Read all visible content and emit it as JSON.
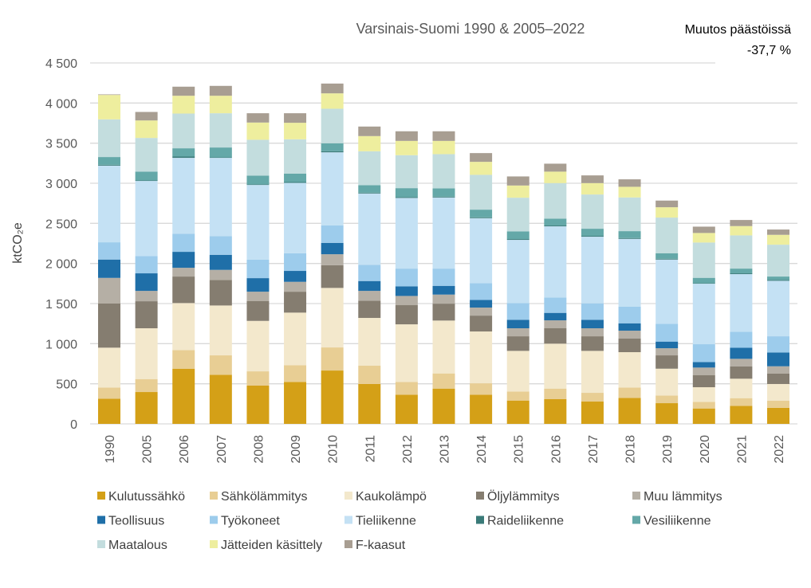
{
  "chart_data": {
    "type": "bar",
    "stacked": true,
    "title": "Varsinais-Suomi 1990 & 2005–2022",
    "annotation": {
      "label": "Muutos päästöissä",
      "value": "-37,7 %"
    },
    "xlabel": "",
    "ylabel": "ktCO₂e",
    "ylim": [
      0,
      4500
    ],
    "yticks": [
      0,
      500,
      1000,
      1500,
      2000,
      2500,
      3000,
      3500,
      4000,
      4500
    ],
    "ytick_labels": [
      "0",
      "500",
      "1 000",
      "1 500",
      "2 000",
      "2 500",
      "3 000",
      "3 500",
      "4 000",
      "4 500"
    ],
    "grid": true,
    "legend_position": "bottom",
    "categories": [
      "1990",
      "2005",
      "2006",
      "2007",
      "2008",
      "2009",
      "2010",
      "2011",
      "2012",
      "2013",
      "2014",
      "2015",
      "2016",
      "2017",
      "2018",
      "2019",
      "2020",
      "2021",
      "2022"
    ],
    "series": [
      {
        "name": "Kulutussähkö",
        "color": "#D4A017",
        "values": [
          314,
          397,
          688,
          612,
          477,
          523,
          665,
          497,
          364,
          440,
          364,
          291,
          308,
          278,
          324,
          258,
          192,
          225,
          199
        ]
      },
      {
        "name": "Sähkölämmitys",
        "color": "#E8CE94",
        "values": [
          139,
          162,
          232,
          242,
          178,
          208,
          288,
          228,
          159,
          189,
          142,
          113,
          132,
          109,
          129,
          96,
          83,
          96,
          89
        ]
      },
      {
        "name": "Kaukolämpö",
        "color": "#F3E8CC",
        "values": [
          497,
          633,
          586,
          622,
          629,
          656,
          742,
          596,
          718,
          659,
          646,
          506,
          560,
          523,
          441,
          334,
          182,
          242,
          209
        ]
      },
      {
        "name": "Öljylämmitys",
        "color": "#857D70",
        "values": [
          550,
          337,
          331,
          318,
          249,
          261,
          284,
          215,
          239,
          211,
          198,
          182,
          192,
          182,
          172,
          166,
          149,
          155,
          129
        ]
      },
      {
        "name": "Muu lämmitys",
        "color": "#B5AFA5",
        "values": [
          320,
          129,
          109,
          126,
          115,
          123,
          136,
          122,
          115,
          113,
          100,
          100,
          99,
          100,
          96,
          89,
          96,
          93,
          92
        ]
      },
      {
        "name": "Teollisuus",
        "color": "#1F6FA8",
        "values": [
          229,
          219,
          199,
          188,
          169,
          136,
          142,
          123,
          120,
          109,
          96,
          106,
          93,
          106,
          92,
          83,
          69,
          139,
          172
        ]
      },
      {
        "name": "Työkoneet",
        "color": "#9DCCEC",
        "values": [
          215,
          215,
          225,
          232,
          232,
          221,
          219,
          202,
          221,
          215,
          208,
          208,
          192,
          205,
          209,
          222,
          222,
          199,
          202
        ]
      },
      {
        "name": "Tieliikenne",
        "color": "#C4E1F4",
        "values": [
          956,
          937,
          947,
          977,
          930,
          877,
          910,
          890,
          881,
          887,
          811,
          788,
          887,
          831,
          844,
          801,
          755,
          718,
          692
        ]
      },
      {
        "name": "Raideliikenne",
        "color": "#3A7A78",
        "values": [
          10,
          6,
          16,
          6,
          7,
          10,
          13,
          10,
          10,
          10,
          10,
          10,
          10,
          10,
          10,
          10,
          6,
          10,
          10
        ]
      },
      {
        "name": "Vesiliikenne",
        "color": "#64A8A8",
        "values": [
          97,
          110,
          103,
          123,
          109,
          106,
          100,
          93,
          112,
          103,
          96,
          96,
          86,
          89,
          86,
          69,
          67,
          59,
          43
        ]
      },
      {
        "name": "Maatalous",
        "color": "#C3DDDE",
        "values": [
          470,
          420,
          433,
          427,
          447,
          427,
          430,
          423,
          411,
          427,
          434,
          420,
          443,
          427,
          420,
          444,
          440,
          414,
          397
        ]
      },
      {
        "name": "Jätteiden käsittely",
        "color": "#EEEE9E",
        "values": [
          304,
          218,
          222,
          218,
          215,
          206,
          192,
          189,
          178,
          165,
          162,
          152,
          143,
          142,
          133,
          129,
          119,
          116,
          123
        ]
      },
      {
        "name": "F-kaasut",
        "color": "#A89E92",
        "values": [
          7,
          106,
          113,
          123,
          116,
          119,
          122,
          119,
          120,
          120,
          109,
          113,
          99,
          96,
          93,
          83,
          79,
          76,
          66
        ]
      }
    ]
  }
}
